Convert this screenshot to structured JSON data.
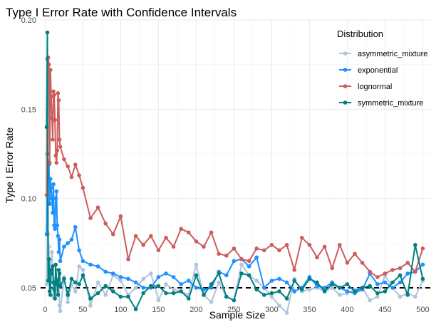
{
  "chart_data": {
    "type": "line",
    "title": "Type I Error Rate with Confidence Intervals",
    "xlabel": "Sample Size",
    "ylabel": "Type I Error Rate",
    "xlim": [
      -6,
      510
    ],
    "ylim": [
      0.042,
      0.2
    ],
    "xticks": [
      0,
      50,
      100,
      150,
      200,
      250,
      300,
      350,
      400,
      450,
      500
    ],
    "yticks": [
      0.05,
      0.1,
      0.15,
      0.2
    ],
    "ytick_labels": [
      "0.05",
      "0.10",
      "0.15",
      "0.20"
    ],
    "reference_line": {
      "y": 0.05,
      "style": "dashed"
    },
    "grid": true,
    "legend": {
      "title": "Distribution",
      "position": "right"
    },
    "series": [
      {
        "name": "asymmetric_mixture",
        "color": "#b0c4de",
        "x": [
          2,
          3,
          4,
          5,
          6,
          7,
          8,
          9,
          10,
          11,
          12,
          13,
          14,
          15,
          16,
          17,
          18,
          19,
          20,
          25,
          30,
          35,
          40,
          45,
          50,
          60,
          70,
          80,
          90,
          100,
          110,
          120,
          130,
          140,
          150,
          160,
          170,
          180,
          190,
          200,
          210,
          220,
          230,
          240,
          250,
          260,
          270,
          280,
          290,
          300,
          310,
          320,
          330,
          340,
          350,
          360,
          370,
          380,
          390,
          400,
          410,
          420,
          430,
          440,
          450,
          460,
          470,
          480,
          490,
          500
        ],
        "y": [
          0.052,
          0.081,
          0.08,
          0.073,
          0.058,
          0.063,
          0.066,
          0.07,
          0.06,
          0.045,
          0.055,
          0.044,
          0.05,
          0.048,
          0.053,
          0.047,
          0.055,
          0.04,
          0.037,
          0.056,
          0.042,
          0.052,
          0.048,
          0.062,
          0.06,
          0.04,
          0.053,
          0.046,
          0.057,
          0.054,
          0.046,
          0.05,
          0.055,
          0.058,
          0.043,
          0.052,
          0.049,
          0.048,
          0.046,
          0.063,
          0.046,
          0.042,
          0.053,
          0.045,
          0.043,
          0.063,
          0.057,
          0.054,
          0.05,
          0.045,
          0.04,
          0.036,
          0.055,
          0.048,
          0.049,
          0.05,
          0.048,
          0.05,
          0.046,
          0.047,
          0.049,
          0.05,
          0.043,
          0.045,
          0.057,
          0.05,
          0.045,
          0.047,
          0.045,
          0.054
        ]
      },
      {
        "name": "exponential",
        "color": "#1e90ff",
        "x": [
          2,
          3,
          4,
          5,
          6,
          7,
          8,
          9,
          10,
          11,
          12,
          13,
          14,
          15,
          16,
          17,
          18,
          19,
          20,
          25,
          30,
          35,
          40,
          45,
          50,
          60,
          70,
          80,
          90,
          100,
          110,
          120,
          130,
          140,
          150,
          160,
          170,
          180,
          190,
          200,
          210,
          220,
          230,
          240,
          250,
          260,
          270,
          280,
          290,
          300,
          310,
          320,
          330,
          340,
          350,
          360,
          370,
          380,
          390,
          400,
          410,
          420,
          430,
          440,
          450,
          460,
          470,
          480,
          490,
          500
        ],
        "y": [
          0.08,
          0.125,
          0.12,
          0.119,
          0.097,
          0.111,
          0.106,
          0.1,
          0.092,
          0.108,
          0.085,
          0.083,
          0.1,
          0.104,
          0.085,
          0.079,
          0.07,
          0.077,
          0.065,
          0.073,
          0.075,
          0.077,
          0.084,
          0.071,
          0.065,
          0.063,
          0.062,
          0.059,
          0.058,
          0.056,
          0.055,
          0.053,
          0.05,
          0.05,
          0.056,
          0.058,
          0.056,
          0.052,
          0.054,
          0.05,
          0.049,
          0.05,
          0.059,
          0.057,
          0.065,
          0.066,
          0.062,
          0.067,
          0.05,
          0.054,
          0.055,
          0.053,
          0.048,
          0.05,
          0.056,
          0.051,
          0.05,
          0.053,
          0.05,
          0.048,
          0.047,
          0.049,
          0.058,
          0.052,
          0.053,
          0.05,
          0.053,
          0.058,
          0.059,
          0.063
        ]
      },
      {
        "name": "lognormal",
        "color": "#cd5c5c",
        "x": [
          2,
          3,
          4,
          5,
          6,
          7,
          8,
          9,
          10,
          11,
          12,
          13,
          14,
          15,
          16,
          17,
          18,
          19,
          20,
          25,
          30,
          35,
          40,
          45,
          50,
          60,
          70,
          80,
          90,
          100,
          110,
          120,
          130,
          140,
          150,
          160,
          170,
          180,
          190,
          200,
          210,
          220,
          230,
          240,
          250,
          260,
          270,
          280,
          290,
          300,
          310,
          320,
          330,
          340,
          350,
          360,
          370,
          380,
          390,
          400,
          410,
          420,
          430,
          440,
          450,
          460,
          470,
          480,
          490,
          500
        ],
        "y": [
          0.102,
          0.178,
          0.179,
          0.175,
          0.12,
          0.172,
          0.157,
          0.145,
          0.133,
          0.16,
          0.158,
          0.144,
          0.124,
          0.12,
          0.127,
          0.159,
          0.155,
          0.133,
          0.129,
          0.122,
          0.118,
          0.112,
          0.119,
          0.113,
          0.106,
          0.089,
          0.095,
          0.086,
          0.08,
          0.09,
          0.066,
          0.079,
          0.074,
          0.079,
          0.071,
          0.078,
          0.073,
          0.083,
          0.081,
          0.076,
          0.073,
          0.081,
          0.069,
          0.068,
          0.072,
          0.066,
          0.065,
          0.072,
          0.071,
          0.074,
          0.071,
          0.074,
          0.06,
          0.078,
          0.074,
          0.067,
          0.073,
          0.061,
          0.074,
          0.064,
          0.069,
          0.064,
          0.059,
          0.056,
          0.058,
          0.06,
          0.061,
          0.064,
          0.059,
          0.072
        ]
      },
      {
        "name": "symmetric_mixture",
        "color": "#008080",
        "x": [
          2,
          3,
          4,
          5,
          6,
          7,
          8,
          9,
          10,
          11,
          12,
          13,
          14,
          15,
          16,
          17,
          18,
          19,
          20,
          25,
          30,
          35,
          40,
          45,
          50,
          60,
          70,
          80,
          90,
          100,
          110,
          120,
          130,
          140,
          150,
          160,
          170,
          180,
          190,
          200,
          210,
          220,
          230,
          240,
          250,
          260,
          270,
          280,
          290,
          300,
          310,
          320,
          330,
          340,
          350,
          360,
          370,
          380,
          390,
          400,
          410,
          420,
          430,
          440,
          450,
          460,
          470,
          480,
          490,
          500
        ],
        "y": [
          0.14,
          0.193,
          0.054,
          0.066,
          0.048,
          0.046,
          0.06,
          0.058,
          0.062,
          0.053,
          0.049,
          0.044,
          0.063,
          0.054,
          0.052,
          0.046,
          0.06,
          0.058,
          0.051,
          0.055,
          0.046,
          0.055,
          0.053,
          0.052,
          0.057,
          0.044,
          0.047,
          0.051,
          0.048,
          0.045,
          0.045,
          0.038,
          0.047,
          0.051,
          0.051,
          0.047,
          0.047,
          0.048,
          0.044,
          0.057,
          0.046,
          0.052,
          0.058,
          0.045,
          0.043,
          0.058,
          0.057,
          0.049,
          0.046,
          0.047,
          0.048,
          0.044,
          0.054,
          0.049,
          0.055,
          0.053,
          0.048,
          0.052,
          0.05,
          0.052,
          0.048,
          0.05,
          0.051,
          0.047,
          0.048,
          0.053,
          0.057,
          0.046,
          0.074,
          0.055
        ]
      }
    ]
  }
}
